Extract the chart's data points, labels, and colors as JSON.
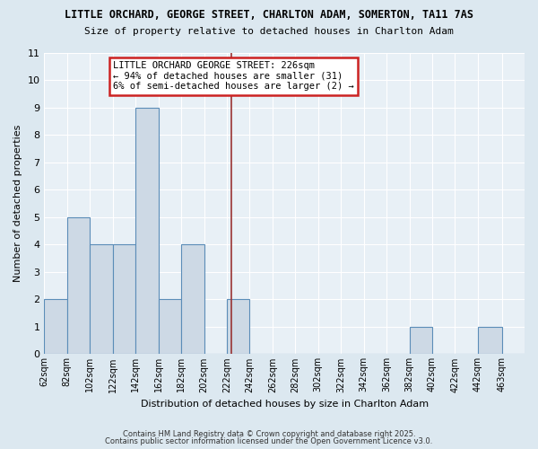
{
  "title": "LITTLE ORCHARD, GEORGE STREET, CHARLTON ADAM, SOMERTON, TA11 7AS",
  "subtitle": "Size of property relative to detached houses in Charlton Adam",
  "xlabel": "Distribution of detached houses by size in Charlton Adam",
  "ylabel": "Number of detached properties",
  "bar_color": "#cdd9e5",
  "bar_edge_color": "#5b8db8",
  "background_color": "#dce8f0",
  "plot_bg_color": "#e8f0f6",
  "grid_color": "#ffffff",
  "annotation_line_color": "#993333",
  "annotation_box_edge_color": "#cc2222",
  "annotation_text": "LITTLE ORCHARD GEORGE STREET: 226sqm\n← 94% of detached houses are smaller (31)\n6% of semi-detached houses are larger (2) →",
  "property_line_x": 226,
  "categories": [
    "62sqm",
    "82sqm",
    "102sqm",
    "122sqm",
    "142sqm",
    "162sqm",
    "182sqm",
    "202sqm",
    "222sqm",
    "242sqm",
    "262sqm",
    "282sqm",
    "302sqm",
    "322sqm",
    "342sqm",
    "362sqm",
    "382sqm",
    "402sqm",
    "422sqm",
    "442sqm",
    "463sqm"
  ],
  "bin_edges": [
    62,
    82,
    102,
    122,
    142,
    162,
    182,
    202,
    222,
    242,
    262,
    282,
    302,
    322,
    342,
    362,
    382,
    402,
    422,
    442,
    463,
    483
  ],
  "values": [
    2,
    5,
    4,
    4,
    9,
    2,
    4,
    0,
    2,
    0,
    0,
    0,
    0,
    0,
    0,
    0,
    1,
    0,
    0,
    1,
    0
  ],
  "ylim": [
    0,
    11
  ],
  "yticks": [
    0,
    1,
    2,
    3,
    4,
    5,
    6,
    7,
    8,
    9,
    10,
    11
  ],
  "footer1": "Contains HM Land Registry data © Crown copyright and database right 2025.",
  "footer2": "Contains public sector information licensed under the Open Government Licence v3.0."
}
